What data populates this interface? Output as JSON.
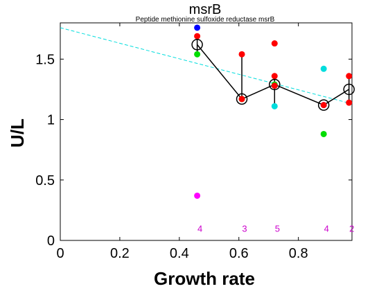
{
  "chart_data": {
    "type": "scatter",
    "title": "msrB",
    "subtitle": "Peptide methionine sulfoxide reductase msrB",
    "xlabel": "Growth rate",
    "ylabel": "U/L",
    "xlim": [
      0,
      0.98
    ],
    "ylim": [
      0,
      1.8
    ],
    "xticks": [
      0,
      0.2,
      0.4,
      0.6,
      0.8
    ],
    "xtick_labels": [
      "0",
      "0.2",
      "0.4",
      "0.6",
      "0.8"
    ],
    "yticks": [
      0,
      0.5,
      1,
      1.5
    ],
    "ytick_labels": [
      "0",
      "0.5",
      "1",
      "1.5"
    ],
    "grid": false,
    "points": [
      {
        "x": 0.46,
        "y": 1.76,
        "color": "#0000ff"
      },
      {
        "x": 0.46,
        "y": 1.69,
        "color": "#ff0000"
      },
      {
        "x": 0.46,
        "y": 1.54,
        "color": "#00dd00"
      },
      {
        "x": 0.46,
        "y": 0.37,
        "color": "#ff00ff"
      },
      {
        "x": 0.61,
        "y": 1.54,
        "color": "#ff0000"
      },
      {
        "x": 0.61,
        "y": 1.17,
        "color": "#00dd00"
      },
      {
        "x": 0.61,
        "y": 1.17,
        "color": "#ff0000"
      },
      {
        "x": 0.72,
        "y": 1.63,
        "color": "#ff0000"
      },
      {
        "x": 0.72,
        "y": 1.36,
        "color": "#ff0000"
      },
      {
        "x": 0.72,
        "y": 1.29,
        "color": "#00dd00"
      },
      {
        "x": 0.72,
        "y": 1.28,
        "color": "#ff0000"
      },
      {
        "x": 0.72,
        "y": 1.11,
        "color": "#00dddd"
      },
      {
        "x": 0.885,
        "y": 1.42,
        "color": "#00dddd"
      },
      {
        "x": 0.885,
        "y": 1.12,
        "color": "#0000ff"
      },
      {
        "x": 0.885,
        "y": 1.12,
        "color": "#ff0000"
      },
      {
        "x": 0.885,
        "y": 0.88,
        "color": "#00dd00"
      },
      {
        "x": 0.97,
        "y": 1.36,
        "color": "#ff0000"
      },
      {
        "x": 0.97,
        "y": 1.14,
        "color": "#ff0000"
      }
    ],
    "means": {
      "x": [
        0.46,
        0.61,
        0.72,
        0.885,
        0.97
      ],
      "y": [
        1.62,
        1.17,
        1.29,
        1.12,
        1.25
      ],
      "err_low": [
        1.54,
        1.17,
        1.11,
        1.12,
        1.14
      ],
      "err_high": [
        1.69,
        1.54,
        1.36,
        1.12,
        1.36
      ],
      "color": "#000000"
    },
    "fit_line": {
      "x": [
        0,
        0.98
      ],
      "y": [
        1.76,
        1.13
      ],
      "color": "#00dddd",
      "style": "dashed"
    },
    "counts": [
      {
        "x": 0.46,
        "label": "4"
      },
      {
        "x": 0.61,
        "label": "3"
      },
      {
        "x": 0.72,
        "label": "5"
      },
      {
        "x": 0.885,
        "label": "4"
      },
      {
        "x": 0.97,
        "label": "2"
      }
    ],
    "count_y": 0.1
  }
}
